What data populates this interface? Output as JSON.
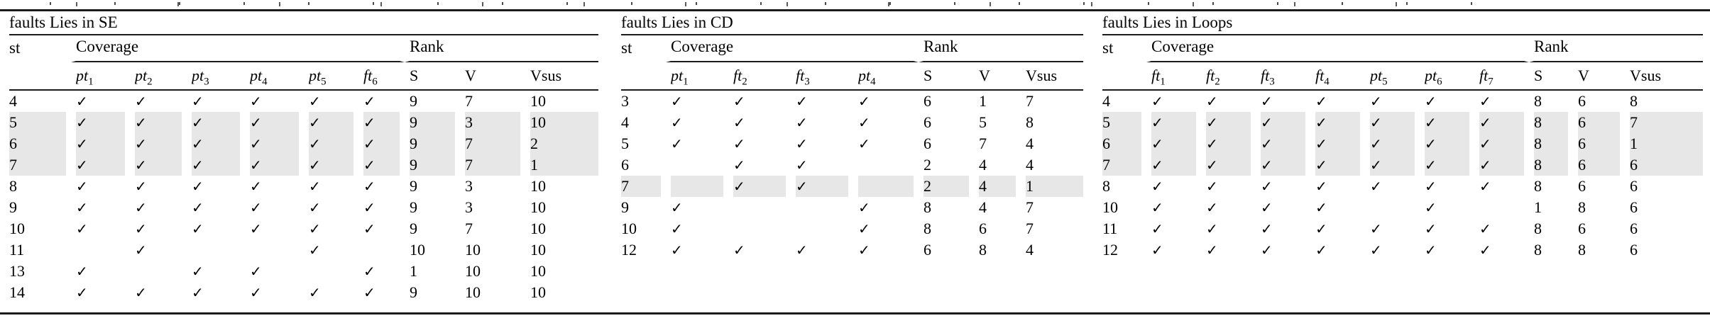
{
  "colors": {
    "highlight": "#e7e7e7",
    "rule": "#1b1b1b",
    "check": "#000000"
  },
  "check_glyph": "✓",
  "tables": [
    {
      "id": "se",
      "title": "faults Lies in SE",
      "st_header": "st",
      "coverage_header": "Coverage",
      "rank_header": "Rank",
      "coverage_cols": [
        {
          "base": "pt",
          "sub": "1"
        },
        {
          "base": "pt",
          "sub": "2"
        },
        {
          "base": "pt",
          "sub": "3"
        },
        {
          "base": "pt",
          "sub": "4"
        },
        {
          "base": "pt",
          "sub": "5"
        },
        {
          "base": "ft",
          "sub": "6"
        }
      ],
      "rank_cols": [
        "S",
        "V",
        "Vsus"
      ],
      "rows": [
        {
          "st": "4",
          "checks": [
            "✓",
            "✓",
            "✓",
            "✓",
            "✓",
            "✓"
          ],
          "rank": [
            "9",
            "7",
            "10"
          ],
          "highlight": false
        },
        {
          "st": "5",
          "checks": [
            "✓",
            "✓",
            "✓",
            "✓",
            "✓",
            "✓"
          ],
          "rank": [
            "9",
            "3",
            "10"
          ],
          "highlight": true
        },
        {
          "st": "6",
          "checks": [
            "✓",
            "✓",
            "✓",
            "✓",
            "✓",
            "✓"
          ],
          "rank": [
            "9",
            "7",
            "2"
          ],
          "highlight": true
        },
        {
          "st": "7",
          "checks": [
            "✓",
            "✓",
            "✓",
            "✓",
            "✓",
            "✓"
          ],
          "rank": [
            "9",
            "7",
            "1"
          ],
          "highlight": true
        },
        {
          "st": "8",
          "checks": [
            "✓",
            "✓",
            "✓",
            "✓",
            "✓",
            "✓"
          ],
          "rank": [
            "9",
            "3",
            "10"
          ],
          "highlight": false
        },
        {
          "st": "9",
          "checks": [
            "✓",
            "✓",
            "✓",
            "✓",
            "✓",
            "✓"
          ],
          "rank": [
            "9",
            "3",
            "10"
          ],
          "highlight": false
        },
        {
          "st": "10",
          "checks": [
            "✓",
            "✓",
            "✓",
            "✓",
            "✓",
            "✓"
          ],
          "rank": [
            "9",
            "7",
            "10"
          ],
          "highlight": false
        },
        {
          "st": "11",
          "checks": [
            "",
            "✓",
            "",
            "",
            "✓",
            ""
          ],
          "rank": [
            "10",
            "10",
            "10"
          ],
          "highlight": false
        },
        {
          "st": "13",
          "checks": [
            "✓",
            "",
            "✓",
            "✓",
            "",
            "✓"
          ],
          "rank": [
            "1",
            "10",
            "10"
          ],
          "highlight": false
        },
        {
          "st": "14",
          "checks": [
            "✓",
            "✓",
            "✓",
            "✓",
            "✓",
            "✓"
          ],
          "rank": [
            "9",
            "10",
            "10"
          ],
          "highlight": false
        }
      ]
    },
    {
      "id": "cd",
      "title": "faults Lies in CD",
      "st_header": "st",
      "coverage_header": "Coverage",
      "rank_header": "Rank",
      "coverage_cols": [
        {
          "base": "pt",
          "sub": "1"
        },
        {
          "base": "ft",
          "sub": "2"
        },
        {
          "base": "ft",
          "sub": "3"
        },
        {
          "base": "pt",
          "sub": "4"
        }
      ],
      "rank_cols": [
        "S",
        "V",
        "Vsus"
      ],
      "rows": [
        {
          "st": "3",
          "checks": [
            "✓",
            "✓",
            "✓",
            "✓"
          ],
          "rank": [
            "6",
            "1",
            "7"
          ],
          "highlight": false
        },
        {
          "st": "4",
          "checks": [
            "✓",
            "✓",
            "✓",
            "✓"
          ],
          "rank": [
            "6",
            "5",
            "8"
          ],
          "highlight": false
        },
        {
          "st": "5",
          "checks": [
            "✓",
            "✓",
            "✓",
            "✓"
          ],
          "rank": [
            "6",
            "7",
            "4"
          ],
          "highlight": false
        },
        {
          "st": "6",
          "checks": [
            "",
            "✓",
            "✓",
            ""
          ],
          "rank": [
            "2",
            "4",
            "4"
          ],
          "highlight": false
        },
        {
          "st": "7",
          "checks": [
            "",
            "✓",
            "✓",
            ""
          ],
          "rank": [
            "2",
            "4",
            "1"
          ],
          "highlight": true
        },
        {
          "st": "9",
          "checks": [
            "✓",
            "",
            "",
            "✓"
          ],
          "rank": [
            "8",
            "4",
            "7"
          ],
          "highlight": false
        },
        {
          "st": "10",
          "checks": [
            "✓",
            "",
            "",
            "✓"
          ],
          "rank": [
            "8",
            "6",
            "7"
          ],
          "highlight": false
        },
        {
          "st": "12",
          "checks": [
            "✓",
            "✓",
            "✓",
            "✓"
          ],
          "rank": [
            "6",
            "8",
            "4"
          ],
          "highlight": false
        }
      ]
    },
    {
      "id": "loops",
      "title": "faults Lies in Loops",
      "st_header": "st",
      "coverage_header": "Coverage",
      "rank_header": "Rank",
      "coverage_cols": [
        {
          "base": "ft",
          "sub": "1"
        },
        {
          "base": "ft",
          "sub": "2"
        },
        {
          "base": "ft",
          "sub": "3"
        },
        {
          "base": "ft",
          "sub": "4"
        },
        {
          "base": "pt",
          "sub": "5"
        },
        {
          "base": "pt",
          "sub": "6"
        },
        {
          "base": "ft",
          "sub": "7"
        }
      ],
      "rank_cols": [
        "S",
        "V",
        "Vsus"
      ],
      "rows": [
        {
          "st": "4",
          "checks": [
            "✓",
            "✓",
            "✓",
            "✓",
            "✓",
            "✓",
            "✓"
          ],
          "rank": [
            "8",
            "6",
            "8"
          ],
          "highlight": false
        },
        {
          "st": "5",
          "checks": [
            "✓",
            "✓",
            "✓",
            "✓",
            "✓",
            "✓",
            "✓"
          ],
          "rank": [
            "8",
            "6",
            "7"
          ],
          "highlight": true
        },
        {
          "st": "6",
          "checks": [
            "✓",
            "✓",
            "✓",
            "✓",
            "✓",
            "✓",
            "✓"
          ],
          "rank": [
            "8",
            "6",
            "1"
          ],
          "highlight": true
        },
        {
          "st": "7",
          "checks": [
            "✓",
            "✓",
            "✓",
            "✓",
            "✓",
            "✓",
            "✓"
          ],
          "rank": [
            "8",
            "6",
            "6"
          ],
          "highlight": true
        },
        {
          "st": "8",
          "checks": [
            "✓",
            "✓",
            "✓",
            "✓",
            "✓",
            "✓",
            "✓"
          ],
          "rank": [
            "8",
            "6",
            "6"
          ],
          "highlight": false
        },
        {
          "st": "10",
          "checks": [
            "✓",
            "✓",
            "✓",
            "✓",
            "",
            "✓",
            ""
          ],
          "rank": [
            "1",
            "8",
            "6"
          ],
          "highlight": false
        },
        {
          "st": "11",
          "checks": [
            "✓",
            "✓",
            "✓",
            "✓",
            "✓",
            "✓",
            "✓"
          ],
          "rank": [
            "8",
            "6",
            "6"
          ],
          "highlight": false
        },
        {
          "st": "12",
          "checks": [
            "✓",
            "✓",
            "✓",
            "✓",
            "✓",
            "✓",
            "✓"
          ],
          "rank": [
            "8",
            "8",
            "6"
          ],
          "highlight": false
        }
      ]
    }
  ]
}
